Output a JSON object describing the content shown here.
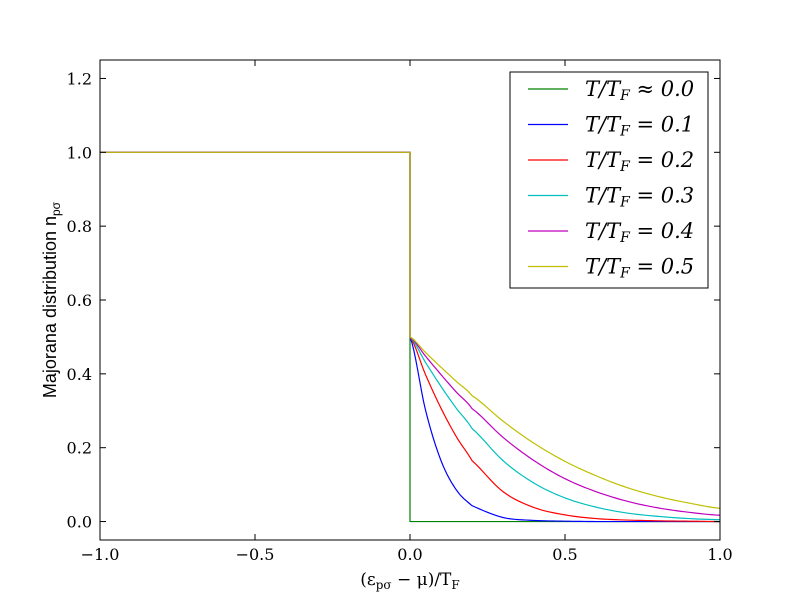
{
  "chart_data": {
    "type": "line",
    "xlabel": "(ε_pσ − μ)/T_F",
    "ylabel": "Majorana distribution n_pσ",
    "xlim": [
      -1.0,
      1.0
    ],
    "ylim": [
      -0.05,
      1.25
    ],
    "xticks": [
      -1.0,
      -0.5,
      0.0,
      0.5,
      1.0
    ],
    "xtick_labels": [
      "−1.0",
      "−0.5",
      "0.0",
      "0.5",
      "1.0"
    ],
    "yticks": [
      0.0,
      0.2,
      0.4,
      0.6,
      0.8,
      1.0,
      1.2
    ],
    "ytick_labels": [
      "0.0",
      "0.2",
      "0.4",
      "0.6",
      "0.8",
      "1.0",
      "1.2"
    ],
    "grid": false,
    "legend_position": "top-right",
    "series": [
      {
        "name": "T/T_F ≈ 0.0",
        "color": "#008000",
        "T": 0.0,
        "x": [
          -1.0,
          0.0,
          0.0,
          1.0
        ],
        "y": [
          1.0,
          1.0,
          0.0,
          0.0
        ]
      },
      {
        "name": "T/T_F = 0.1",
        "color": "#0000ff",
        "T": 0.1,
        "x": [
          -1.0,
          0.0,
          0.0,
          0.05,
          0.1,
          0.15,
          0.2,
          0.3,
          0.4,
          0.5,
          0.6,
          0.7,
          0.8,
          0.9,
          1.0
        ],
        "y": [
          1.0,
          1.0,
          0.5,
          0.302,
          0.165,
          0.085,
          0.043,
          0.011,
          0.003,
          0.001,
          0.0,
          0.0,
          0.0,
          0.0,
          0.0
        ]
      },
      {
        "name": "T/T_F = 0.2",
        "color": "#ff0000",
        "T": 0.2,
        "x": [
          -1.0,
          0.0,
          0.0,
          0.05,
          0.1,
          0.15,
          0.2,
          0.3,
          0.4,
          0.5,
          0.6,
          0.7,
          0.8,
          0.9,
          1.0
        ],
        "y": [
          1.0,
          1.0,
          0.5,
          0.398,
          0.307,
          0.229,
          0.165,
          0.081,
          0.038,
          0.018,
          0.008,
          0.004,
          0.002,
          0.001,
          0.0
        ]
      },
      {
        "name": "T/T_F = 0.3",
        "color": "#00bfbf",
        "T": 0.3,
        "x": [
          -1.0,
          0.0,
          0.0,
          0.05,
          0.1,
          0.15,
          0.2,
          0.3,
          0.4,
          0.5,
          0.6,
          0.7,
          0.8,
          0.9,
          1.0
        ],
        "y": [
          1.0,
          1.0,
          0.5,
          0.431,
          0.366,
          0.306,
          0.252,
          0.165,
          0.104,
          0.064,
          0.039,
          0.023,
          0.014,
          0.008,
          0.005
        ]
      },
      {
        "name": "T/T_F = 0.4",
        "color": "#bf00bf",
        "T": 0.4,
        "x": [
          -1.0,
          0.0,
          0.0,
          0.05,
          0.1,
          0.15,
          0.2,
          0.3,
          0.4,
          0.5,
          0.6,
          0.7,
          0.8,
          0.9,
          1.0
        ],
        "y": [
          1.0,
          1.0,
          0.5,
          0.448,
          0.398,
          0.35,
          0.306,
          0.228,
          0.165,
          0.116,
          0.081,
          0.055,
          0.037,
          0.025,
          0.017
        ]
      },
      {
        "name": "T/T_F = 0.5",
        "color": "#bfbf00",
        "T": 0.5,
        "x": [
          -1.0,
          0.0,
          0.0,
          0.05,
          0.1,
          0.15,
          0.2,
          0.3,
          0.4,
          0.5,
          0.6,
          0.7,
          0.8,
          0.9,
          1.0
        ],
        "y": [
          1.0,
          1.0,
          0.5,
          0.458,
          0.418,
          0.379,
          0.341,
          0.272,
          0.212,
          0.163,
          0.124,
          0.092,
          0.068,
          0.05,
          0.036
        ]
      }
    ]
  }
}
